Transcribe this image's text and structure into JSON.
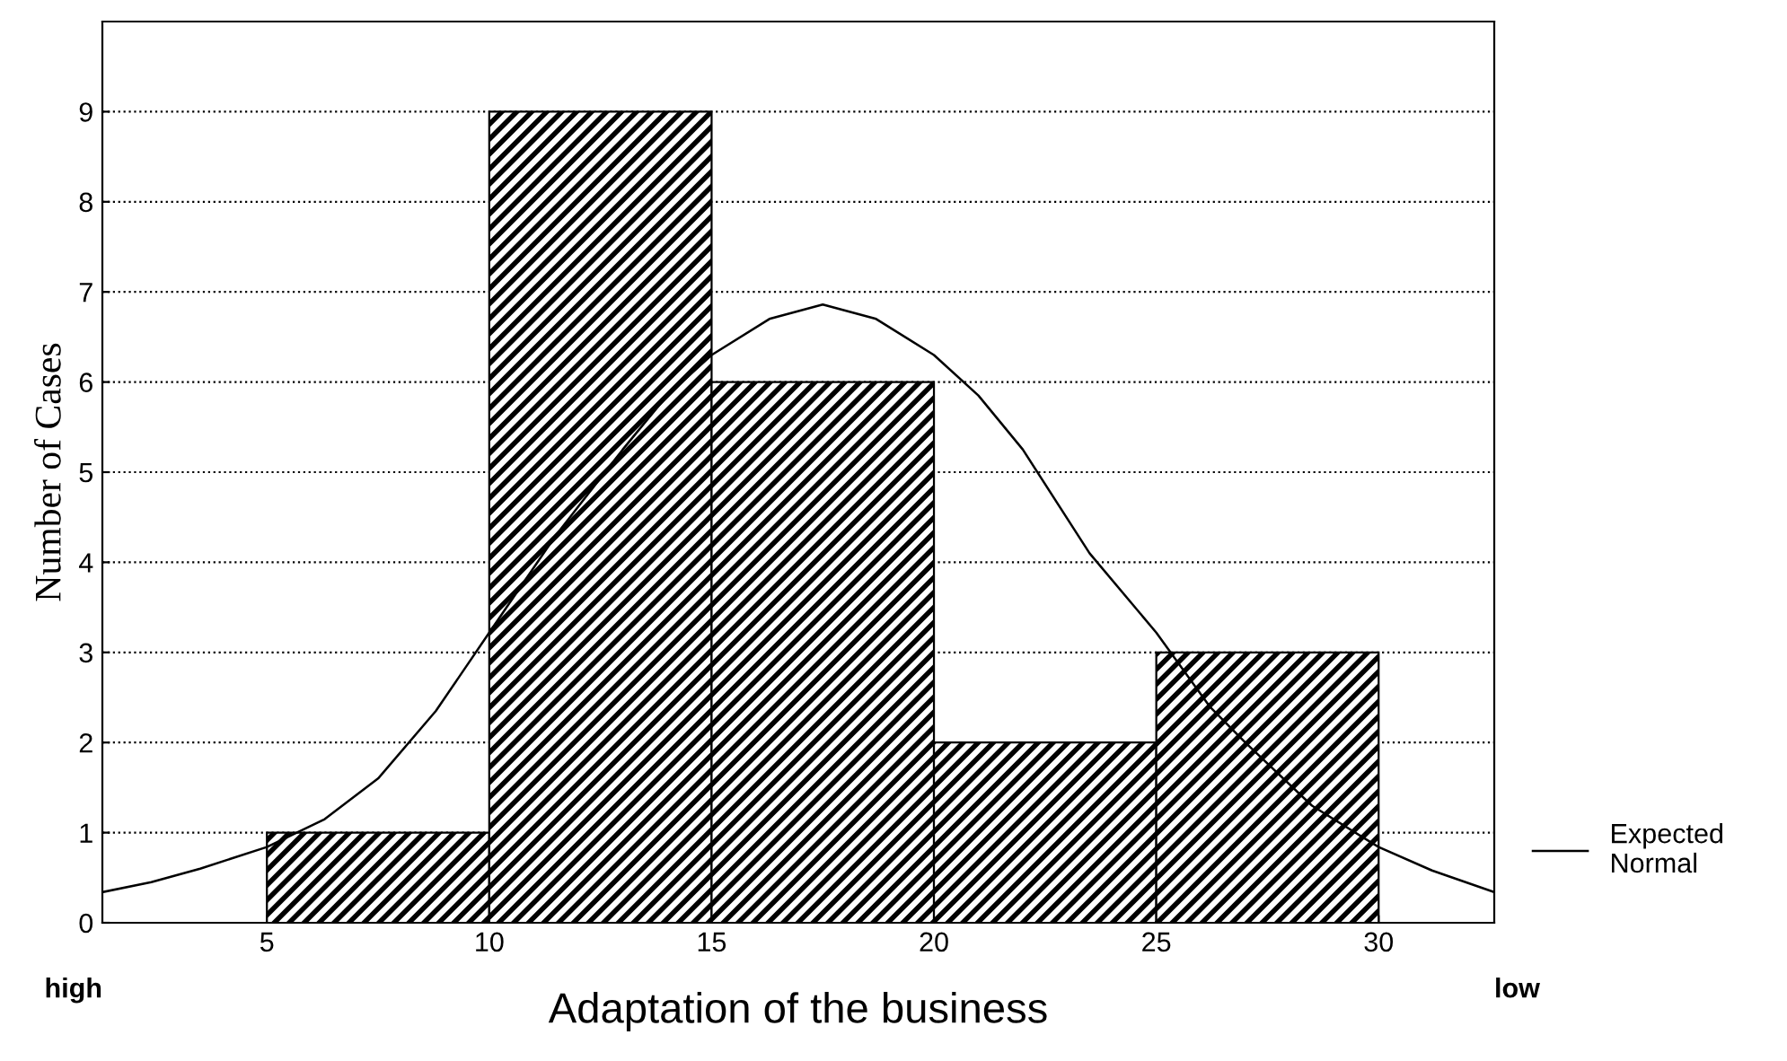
{
  "chart_data": {
    "type": "histogram",
    "xlabel": "Adaptation of the business",
    "ylabel": "Number of Cases",
    "bins": [
      5,
      10,
      15,
      20,
      25,
      30
    ],
    "values": [
      1,
      9,
      6,
      2,
      3
    ],
    "series": [
      {
        "type": "line",
        "name": "Expected Normal",
        "color": "#000000",
        "x": [
          1.3,
          2.4,
          3.5,
          5,
          6.3,
          7.5,
          8.8,
          10,
          11.5,
          13,
          14,
          15,
          16.3,
          17.5,
          18.7,
          20,
          21,
          22,
          23.5,
          25,
          26.2,
          27,
          28.5,
          30,
          31.2,
          32.6
        ],
        "values": [
          0.34,
          0.45,
          0.6,
          0.84,
          1.15,
          1.6,
          2.35,
          3.22,
          4.3,
          5.25,
          5.85,
          6.3,
          6.7,
          6.86,
          6.7,
          6.3,
          5.85,
          5.25,
          4.1,
          3.22,
          2.4,
          2.0,
          1.3,
          0.84,
          0.58,
          0.34
        ]
      }
    ],
    "xlim": [
      1.3,
      32.6
    ],
    "ylim": [
      0,
      10
    ],
    "xticks": [
      5,
      10,
      15,
      20,
      25,
      30
    ],
    "yticks": [
      0,
      1,
      2,
      3,
      4,
      5,
      6,
      7,
      8,
      9
    ],
    "grid": "y",
    "legend": "right",
    "line_style": "solid",
    "marker": "none",
    "annotations": [
      "high",
      "low"
    ]
  }
}
